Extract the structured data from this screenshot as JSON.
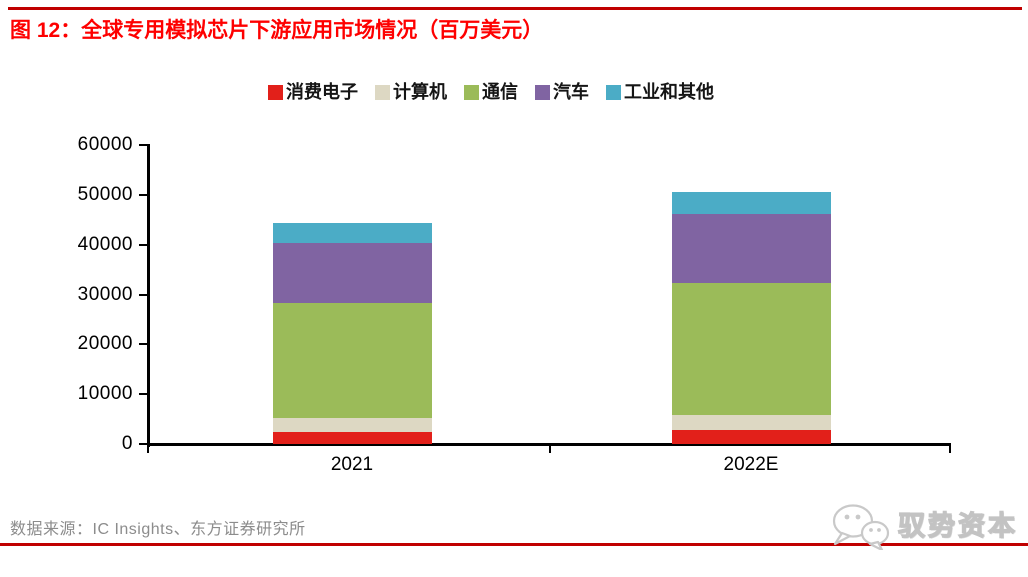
{
  "page": {
    "title": "图 12：全球专用模拟芯片下游应用市场情况（百万美元）",
    "source": "数据来源：IC Insights、东方证券研究所",
    "brand": "驭势资本",
    "accent_rule_color": "#c00000",
    "title_color": "#fe0000"
  },
  "chart_data": {
    "type": "bar",
    "stacked": true,
    "title": "全球专用模拟芯片下游应用市场情况（百万美元）",
    "unit": "百万美元",
    "categories": [
      "2021",
      "2022E"
    ],
    "series": [
      {
        "name": "消费电子",
        "color": "#e2201a",
        "values": [
          2400,
          2800
        ]
      },
      {
        "name": "计算机",
        "color": "#ddd8c3",
        "values": [
          2800,
          3000
        ]
      },
      {
        "name": "通信",
        "color": "#9bbb59",
        "values": [
          23100,
          26500
        ]
      },
      {
        "name": "汽车",
        "color": "#8064a2",
        "values": [
          12000,
          13900
        ]
      },
      {
        "name": "工业和其他",
        "color": "#4bacc6",
        "values": [
          4000,
          4400
        ]
      }
    ],
    "totals": [
      44300,
      50600
    ],
    "ylim": [
      0,
      60000
    ],
    "yticks": [
      0,
      10000,
      20000,
      30000,
      40000,
      50000,
      60000
    ],
    "legend_position": "top",
    "grid": false
  }
}
